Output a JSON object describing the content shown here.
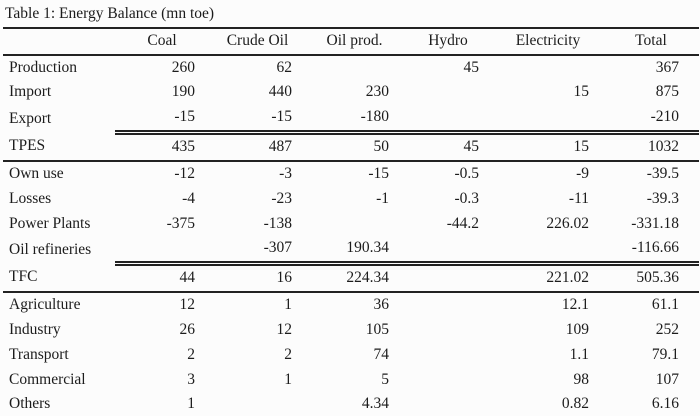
{
  "title": "Table 1: Energy Balance (mn toe)",
  "table": {
    "columns": [
      "",
      "Coal",
      "Crude Oil",
      "Oil prod.",
      "Hydro",
      "Electricity",
      "Total"
    ],
    "rows": [
      {
        "label": "Production",
        "values": [
          "260",
          "62",
          "",
          "45",
          "",
          "367"
        ],
        "rule": "none"
      },
      {
        "label": "Import",
        "values": [
          "190",
          "440",
          "230",
          "",
          "15",
          "875"
        ],
        "rule": "none"
      },
      {
        "label": "Export",
        "values": [
          "-15",
          "-15",
          "-180",
          "",
          "",
          "-210"
        ],
        "rule": "double"
      },
      {
        "label": "TPES",
        "values": [
          "435",
          "487",
          "50",
          "45",
          "15",
          "1032"
        ],
        "rule": "single"
      },
      {
        "label": "Own use",
        "values": [
          "-12",
          "-3",
          "-15",
          "-0.5",
          "-9",
          "-39.5"
        ],
        "rule": "none"
      },
      {
        "label": "Losses",
        "values": [
          "-4",
          "-23",
          "-1",
          "-0.3",
          "-11",
          "-39.3"
        ],
        "rule": "none"
      },
      {
        "label": "Power Plants",
        "values": [
          "-375",
          "-138",
          "",
          "-44.2",
          "226.02",
          "-331.18"
        ],
        "rule": "none"
      },
      {
        "label": "Oil refineries",
        "values": [
          "",
          "-307",
          "190.34",
          "",
          "",
          "-116.66"
        ],
        "rule": "double"
      },
      {
        "label": "TFC",
        "values": [
          "44",
          "16",
          "224.34",
          "",
          "221.02",
          "505.36"
        ],
        "rule": "single"
      },
      {
        "label": "Agriculture",
        "values": [
          "12",
          "1",
          "36",
          "",
          "12.1",
          "61.1"
        ],
        "rule": "none"
      },
      {
        "label": "Industry",
        "values": [
          "26",
          "12",
          "105",
          "",
          "109",
          "252"
        ],
        "rule": "none"
      },
      {
        "label": "Transport",
        "values": [
          "2",
          "2",
          "74",
          "",
          "1.1",
          "79.1"
        ],
        "rule": "none"
      },
      {
        "label": "Commercial",
        "values": [
          "3",
          "1",
          "5",
          "",
          "98",
          "107"
        ],
        "rule": "none"
      },
      {
        "label": "Others",
        "values": [
          "1",
          "",
          "4.34",
          "",
          "0.82",
          "6.16"
        ],
        "rule": "bottom"
      }
    ]
  }
}
